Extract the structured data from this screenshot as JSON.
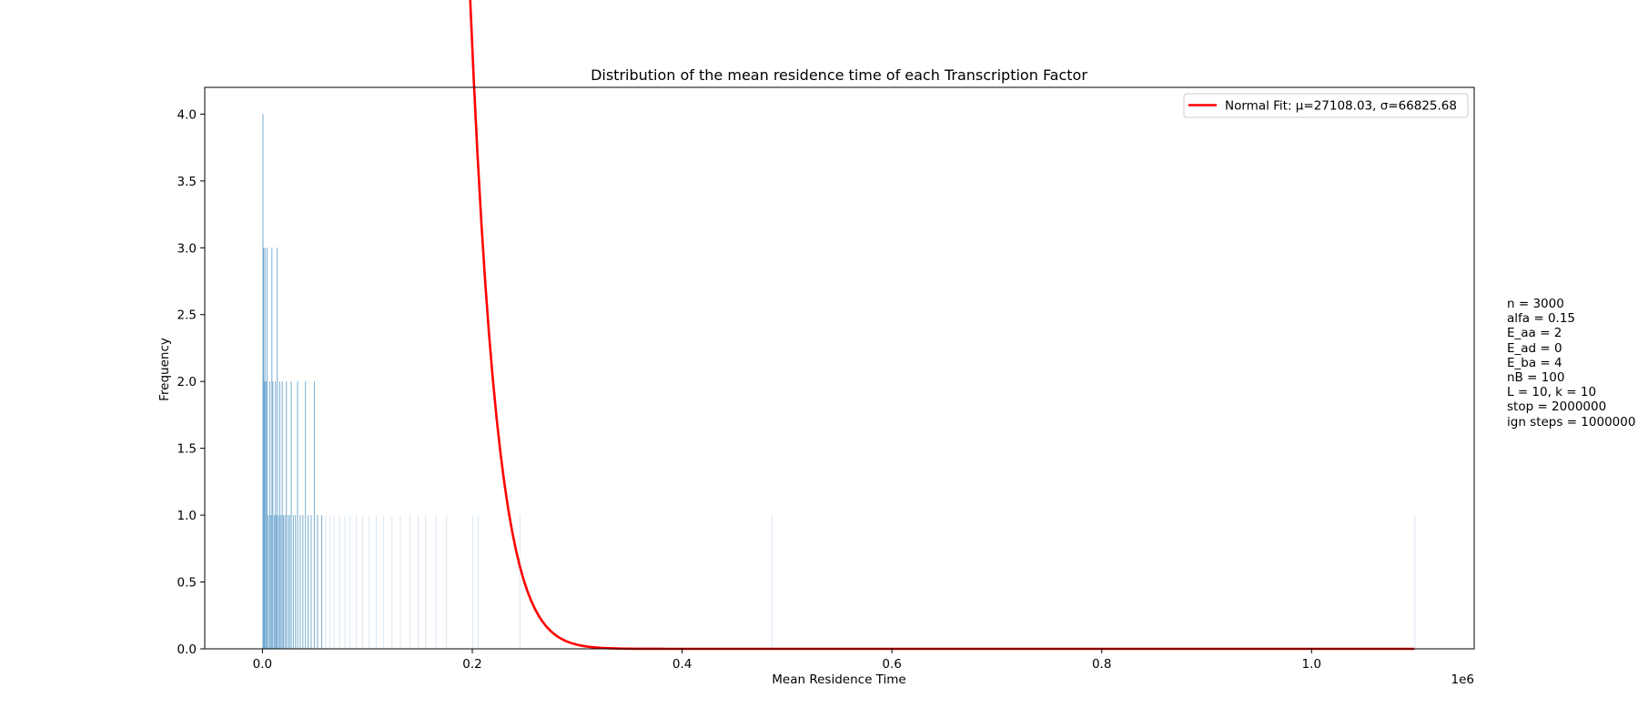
{
  "chart_data": {
    "type": "bar",
    "title": "Distribution of the mean residence time of each Transcription Factor",
    "xlabel": "Mean Residence Time",
    "ylabel": "Frequency",
    "x_offset_label": "1e6",
    "xlim": [
      -55000,
      1155000
    ],
    "ylim": [
      0,
      4.2
    ],
    "xticks": [
      {
        "value": 0,
        "label": "0.0"
      },
      {
        "value": 200000,
        "label": "0.2"
      },
      {
        "value": 400000,
        "label": "0.4"
      },
      {
        "value": 600000,
        "label": "0.6"
      },
      {
        "value": 800000,
        "label": "0.8"
      },
      {
        "value": 1000000,
        "label": "1.0"
      }
    ],
    "yticks": [
      {
        "value": 0,
        "label": "0.0"
      },
      {
        "value": 0.5,
        "label": "0.5"
      },
      {
        "value": 1.0,
        "label": "1.0"
      },
      {
        "value": 1.5,
        "label": "1.5"
      },
      {
        "value": 2.0,
        "label": "2.0"
      },
      {
        "value": 2.5,
        "label": "2.5"
      },
      {
        "value": 3.0,
        "label": "3.0"
      },
      {
        "value": 3.5,
        "label": "3.5"
      },
      {
        "value": 4.0,
        "label": "4.0"
      }
    ],
    "bar_color": "#1f77b4",
    "bar_color_light": "#c6dbef",
    "histogram": {
      "name": "Mean Residence Time",
      "bins": [
        {
          "x": 0,
          "count": 4
        },
        {
          "x": 600,
          "count": 3
        },
        {
          "x": 1400,
          "count": 2
        },
        {
          "x": 2000,
          "count": 3
        },
        {
          "x": 3100,
          "count": 2
        },
        {
          "x": 4000,
          "count": 3
        },
        {
          "x": 5200,
          "count": 1
        },
        {
          "x": 6500,
          "count": 2
        },
        {
          "x": 7600,
          "count": 1
        },
        {
          "x": 8500,
          "count": 3
        },
        {
          "x": 9400,
          "count": 2
        },
        {
          "x": 10800,
          "count": 1
        },
        {
          "x": 11900,
          "count": 2
        },
        {
          "x": 12700,
          "count": 1
        },
        {
          "x": 13600,
          "count": 3
        },
        {
          "x": 14900,
          "count": 1
        },
        {
          "x": 16000,
          "count": 2
        },
        {
          "x": 17200,
          "count": 1
        },
        {
          "x": 18400,
          "count": 2
        },
        {
          "x": 19500,
          "count": 1
        },
        {
          "x": 21000,
          "count": 1
        },
        {
          "x": 22300,
          "count": 2
        },
        {
          "x": 24000,
          "count": 1
        },
        {
          "x": 25500,
          "count": 1
        },
        {
          "x": 27000,
          "count": 2
        },
        {
          "x": 29000,
          "count": 1
        },
        {
          "x": 31000,
          "count": 1
        },
        {
          "x": 33000,
          "count": 2
        },
        {
          "x": 35500,
          "count": 1
        },
        {
          "x": 38000,
          "count": 1
        },
        {
          "x": 40500,
          "count": 2
        },
        {
          "x": 43000,
          "count": 1
        },
        {
          "x": 46000,
          "count": 1
        },
        {
          "x": 49000,
          "count": 2
        },
        {
          "x": 52000,
          "count": 1
        },
        {
          "x": 56000,
          "count": 1
        },
        {
          "x": 60000,
          "count": 1
        },
        {
          "x": 64000,
          "count": 1
        },
        {
          "x": 68000,
          "count": 1
        },
        {
          "x": 73000,
          "count": 1
        },
        {
          "x": 78000,
          "count": 1
        },
        {
          "x": 83000,
          "count": 1
        },
        {
          "x": 89000,
          "count": 1
        },
        {
          "x": 95000,
          "count": 1
        },
        {
          "x": 101000,
          "count": 1
        },
        {
          "x": 108000,
          "count": 1
        },
        {
          "x": 115000,
          "count": 1
        },
        {
          "x": 123000,
          "count": 1
        },
        {
          "x": 131000,
          "count": 1
        },
        {
          "x": 140000,
          "count": 1
        },
        {
          "x": 148000,
          "count": 1
        },
        {
          "x": 155000,
          "count": 1
        },
        {
          "x": 165000,
          "count": 1
        },
        {
          "x": 175000,
          "count": 1
        },
        {
          "x": 200000,
          "count": 1
        },
        {
          "x": 205000,
          "count": 1
        },
        {
          "x": 245000,
          "count": 1
        },
        {
          "x": 485000,
          "count": 1
        },
        {
          "x": 1098000,
          "count": 1
        }
      ]
    },
    "series": [
      {
        "name": "Normal Fit: μ=27108.03, σ=66825.68",
        "type": "line",
        "color": "#ff0000",
        "mu": 27108.03,
        "sigma": 66825.68,
        "x_range": [
          0,
          1098000
        ],
        "y_scale": 21.4
      }
    ],
    "legend_position": "top-right",
    "grid": false
  },
  "params": {
    "lines": [
      "n = 3000",
      "alfa = 0.15",
      "E_aa = 2",
      "E_ad = 0",
      "E_ba = 4",
      "nB = 100",
      "L = 10, k = 10",
      "stop = 2000000",
      "ign steps = 1000000"
    ]
  }
}
